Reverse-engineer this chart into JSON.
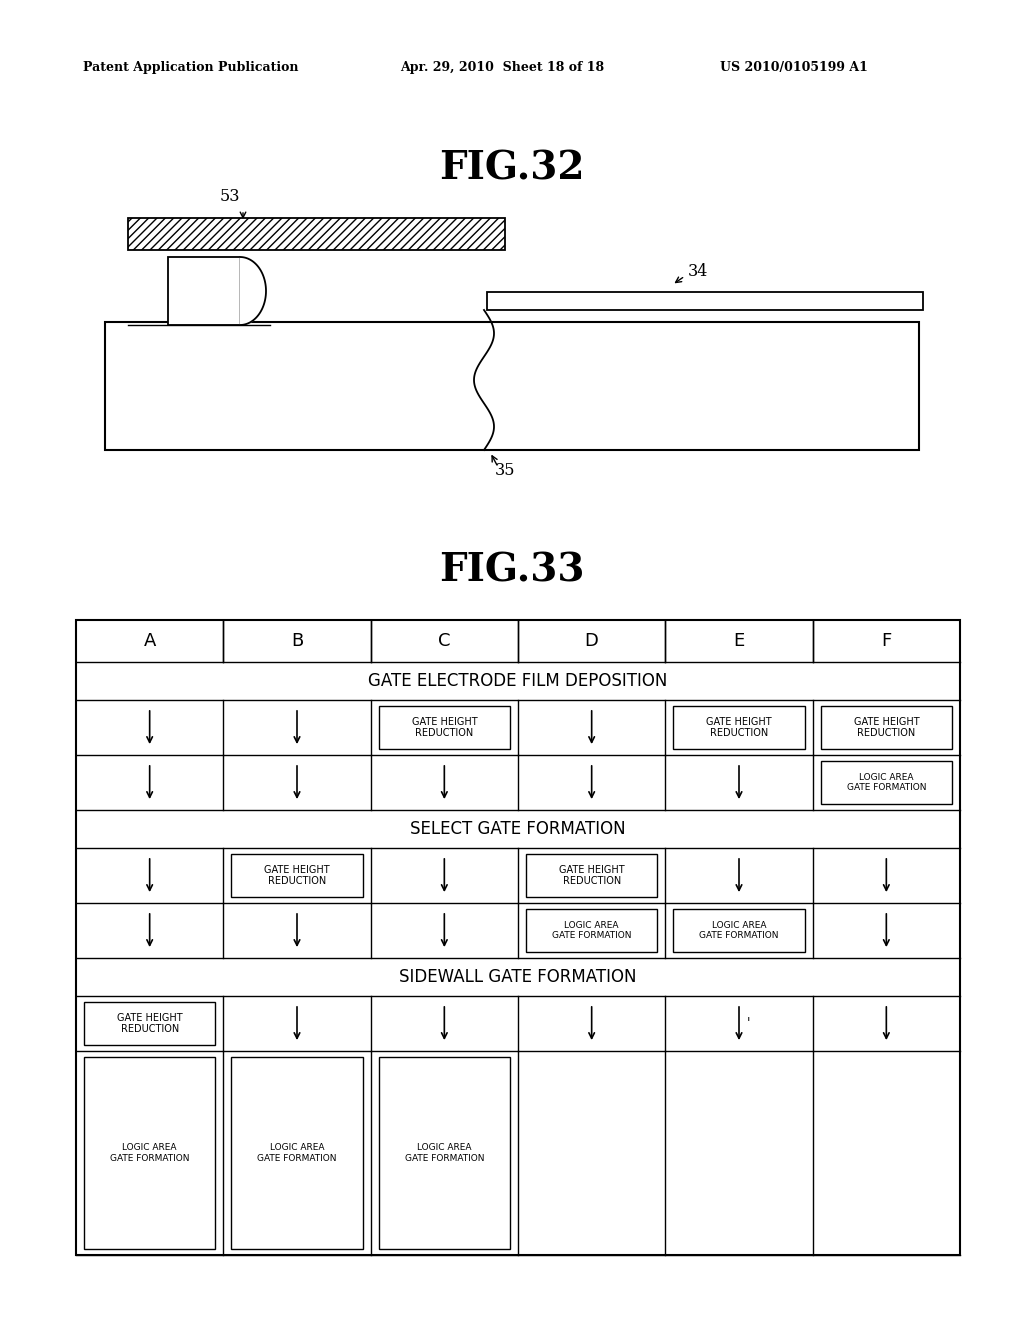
{
  "bg_color": "#ffffff",
  "header_text_left": "Patent Application Publication",
  "header_text_mid": "Apr. 29, 2010  Sheet 18 of 18",
  "header_text_right": "US 2010/0105199 A1",
  "fig32_title": "FIG.32",
  "fig33_title": "FIG.33",
  "columns": [
    "A",
    "B",
    "C",
    "D",
    "E",
    "F"
  ],
  "section1_title": "GATE ELECTRODE FILM DEPOSITION",
  "section2_title": "SELECT GATE FORMATION",
  "section3_title": "SIDEWALL GATE FORMATION"
}
